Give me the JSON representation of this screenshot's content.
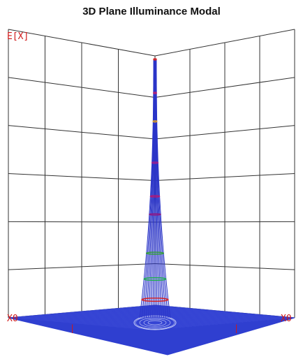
{
  "title": "3D Plane Illuminance Modal",
  "colors": {
    "grid": "#333333",
    "mesh": "#2a35c8",
    "floor": "#2f3fd0",
    "label": "#d01818",
    "rings": [
      "#d82020",
      "#c02070",
      "#e0a020",
      "#9a2090",
      "#b01878",
      "#8a1a8a",
      "#30a030",
      "#20b050"
    ]
  },
  "chart_data": {
    "type": "surface",
    "title": "3D Plane Illuminance Modal",
    "zlabel": "E[X]",
    "x_left_label": "X0",
    "x_right_label": "X0",
    "grid": true,
    "rings_z_fraction": [
      1.0,
      0.87,
      0.76,
      0.6,
      0.47,
      0.4,
      0.25,
      0.15,
      0.07
    ],
    "peak_z_fraction": 1.0
  }
}
